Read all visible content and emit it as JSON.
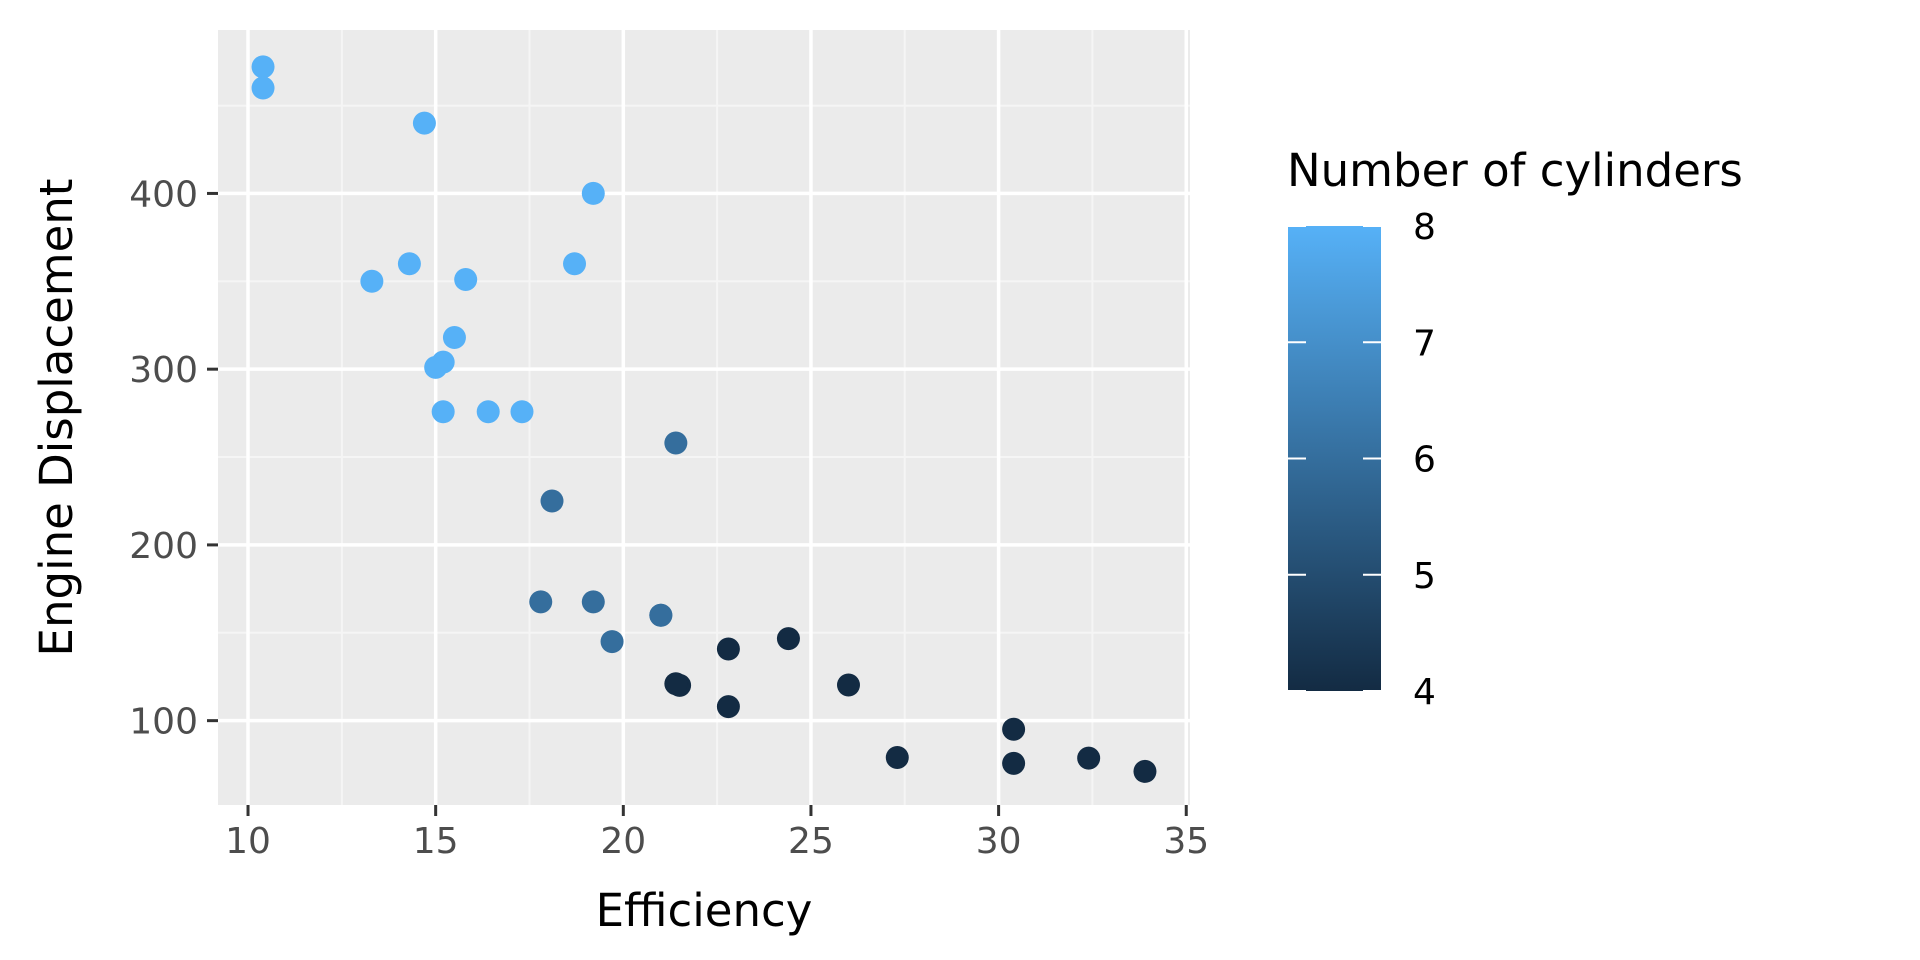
{
  "chart_data": {
    "type": "scatter",
    "title": "",
    "xlabel": "Efficiency",
    "ylabel": "Engine Displacement",
    "xlim": [
      9.2,
      35.1
    ],
    "ylim": [
      52,
      493
    ],
    "x_ticks": [
      10,
      15,
      20,
      25,
      30,
      35
    ],
    "y_ticks": [
      100,
      200,
      300,
      400
    ],
    "grid": true,
    "legend": {
      "title": "Number of cylinders",
      "placement": "right",
      "type": "colorbar",
      "min": 4,
      "max": 8,
      "ticks": [
        4,
        5,
        6,
        7,
        8
      ],
      "color_low": "#132B43",
      "color_high": "#56B1F7"
    },
    "points": [
      {
        "x": 21.0,
        "y": 160,
        "cyl": 6
      },
      {
        "x": 21.0,
        "y": 160,
        "cyl": 6
      },
      {
        "x": 22.8,
        "y": 108,
        "cyl": 4
      },
      {
        "x": 21.4,
        "y": 258,
        "cyl": 6
      },
      {
        "x": 18.7,
        "y": 360,
        "cyl": 8
      },
      {
        "x": 18.1,
        "y": 225,
        "cyl": 6
      },
      {
        "x": 14.3,
        "y": 360,
        "cyl": 8
      },
      {
        "x": 24.4,
        "y": 146.7,
        "cyl": 4
      },
      {
        "x": 22.8,
        "y": 140.8,
        "cyl": 4
      },
      {
        "x": 19.2,
        "y": 167.6,
        "cyl": 6
      },
      {
        "x": 17.8,
        "y": 167.6,
        "cyl": 6
      },
      {
        "x": 16.4,
        "y": 275.8,
        "cyl": 8
      },
      {
        "x": 17.3,
        "y": 275.8,
        "cyl": 8
      },
      {
        "x": 15.2,
        "y": 275.8,
        "cyl": 8
      },
      {
        "x": 10.4,
        "y": 472,
        "cyl": 8
      },
      {
        "x": 10.4,
        "y": 460,
        "cyl": 8
      },
      {
        "x": 14.7,
        "y": 440,
        "cyl": 8
      },
      {
        "x": 32.4,
        "y": 78.7,
        "cyl": 4
      },
      {
        "x": 30.4,
        "y": 75.7,
        "cyl": 4
      },
      {
        "x": 33.9,
        "y": 71.1,
        "cyl": 4
      },
      {
        "x": 21.5,
        "y": 120.1,
        "cyl": 4
      },
      {
        "x": 15.5,
        "y": 318,
        "cyl": 8
      },
      {
        "x": 15.2,
        "y": 304,
        "cyl": 8
      },
      {
        "x": 13.3,
        "y": 350,
        "cyl": 8
      },
      {
        "x": 19.2,
        "y": 400,
        "cyl": 8
      },
      {
        "x": 27.3,
        "y": 79,
        "cyl": 4
      },
      {
        "x": 26.0,
        "y": 120.3,
        "cyl": 4
      },
      {
        "x": 30.4,
        "y": 95.1,
        "cyl": 4
      },
      {
        "x": 15.8,
        "y": 351,
        "cyl": 8
      },
      {
        "x": 19.7,
        "y": 145,
        "cyl": 6
      },
      {
        "x": 15.0,
        "y": 301,
        "cyl": 8
      },
      {
        "x": 21.4,
        "y": 121,
        "cyl": 4
      }
    ]
  },
  "colors": {
    "panel_background": "#EBEBEB",
    "grid_major": "#FFFFFF",
    "grid_minor": "#F5F5F5",
    "tick": "#333333"
  }
}
